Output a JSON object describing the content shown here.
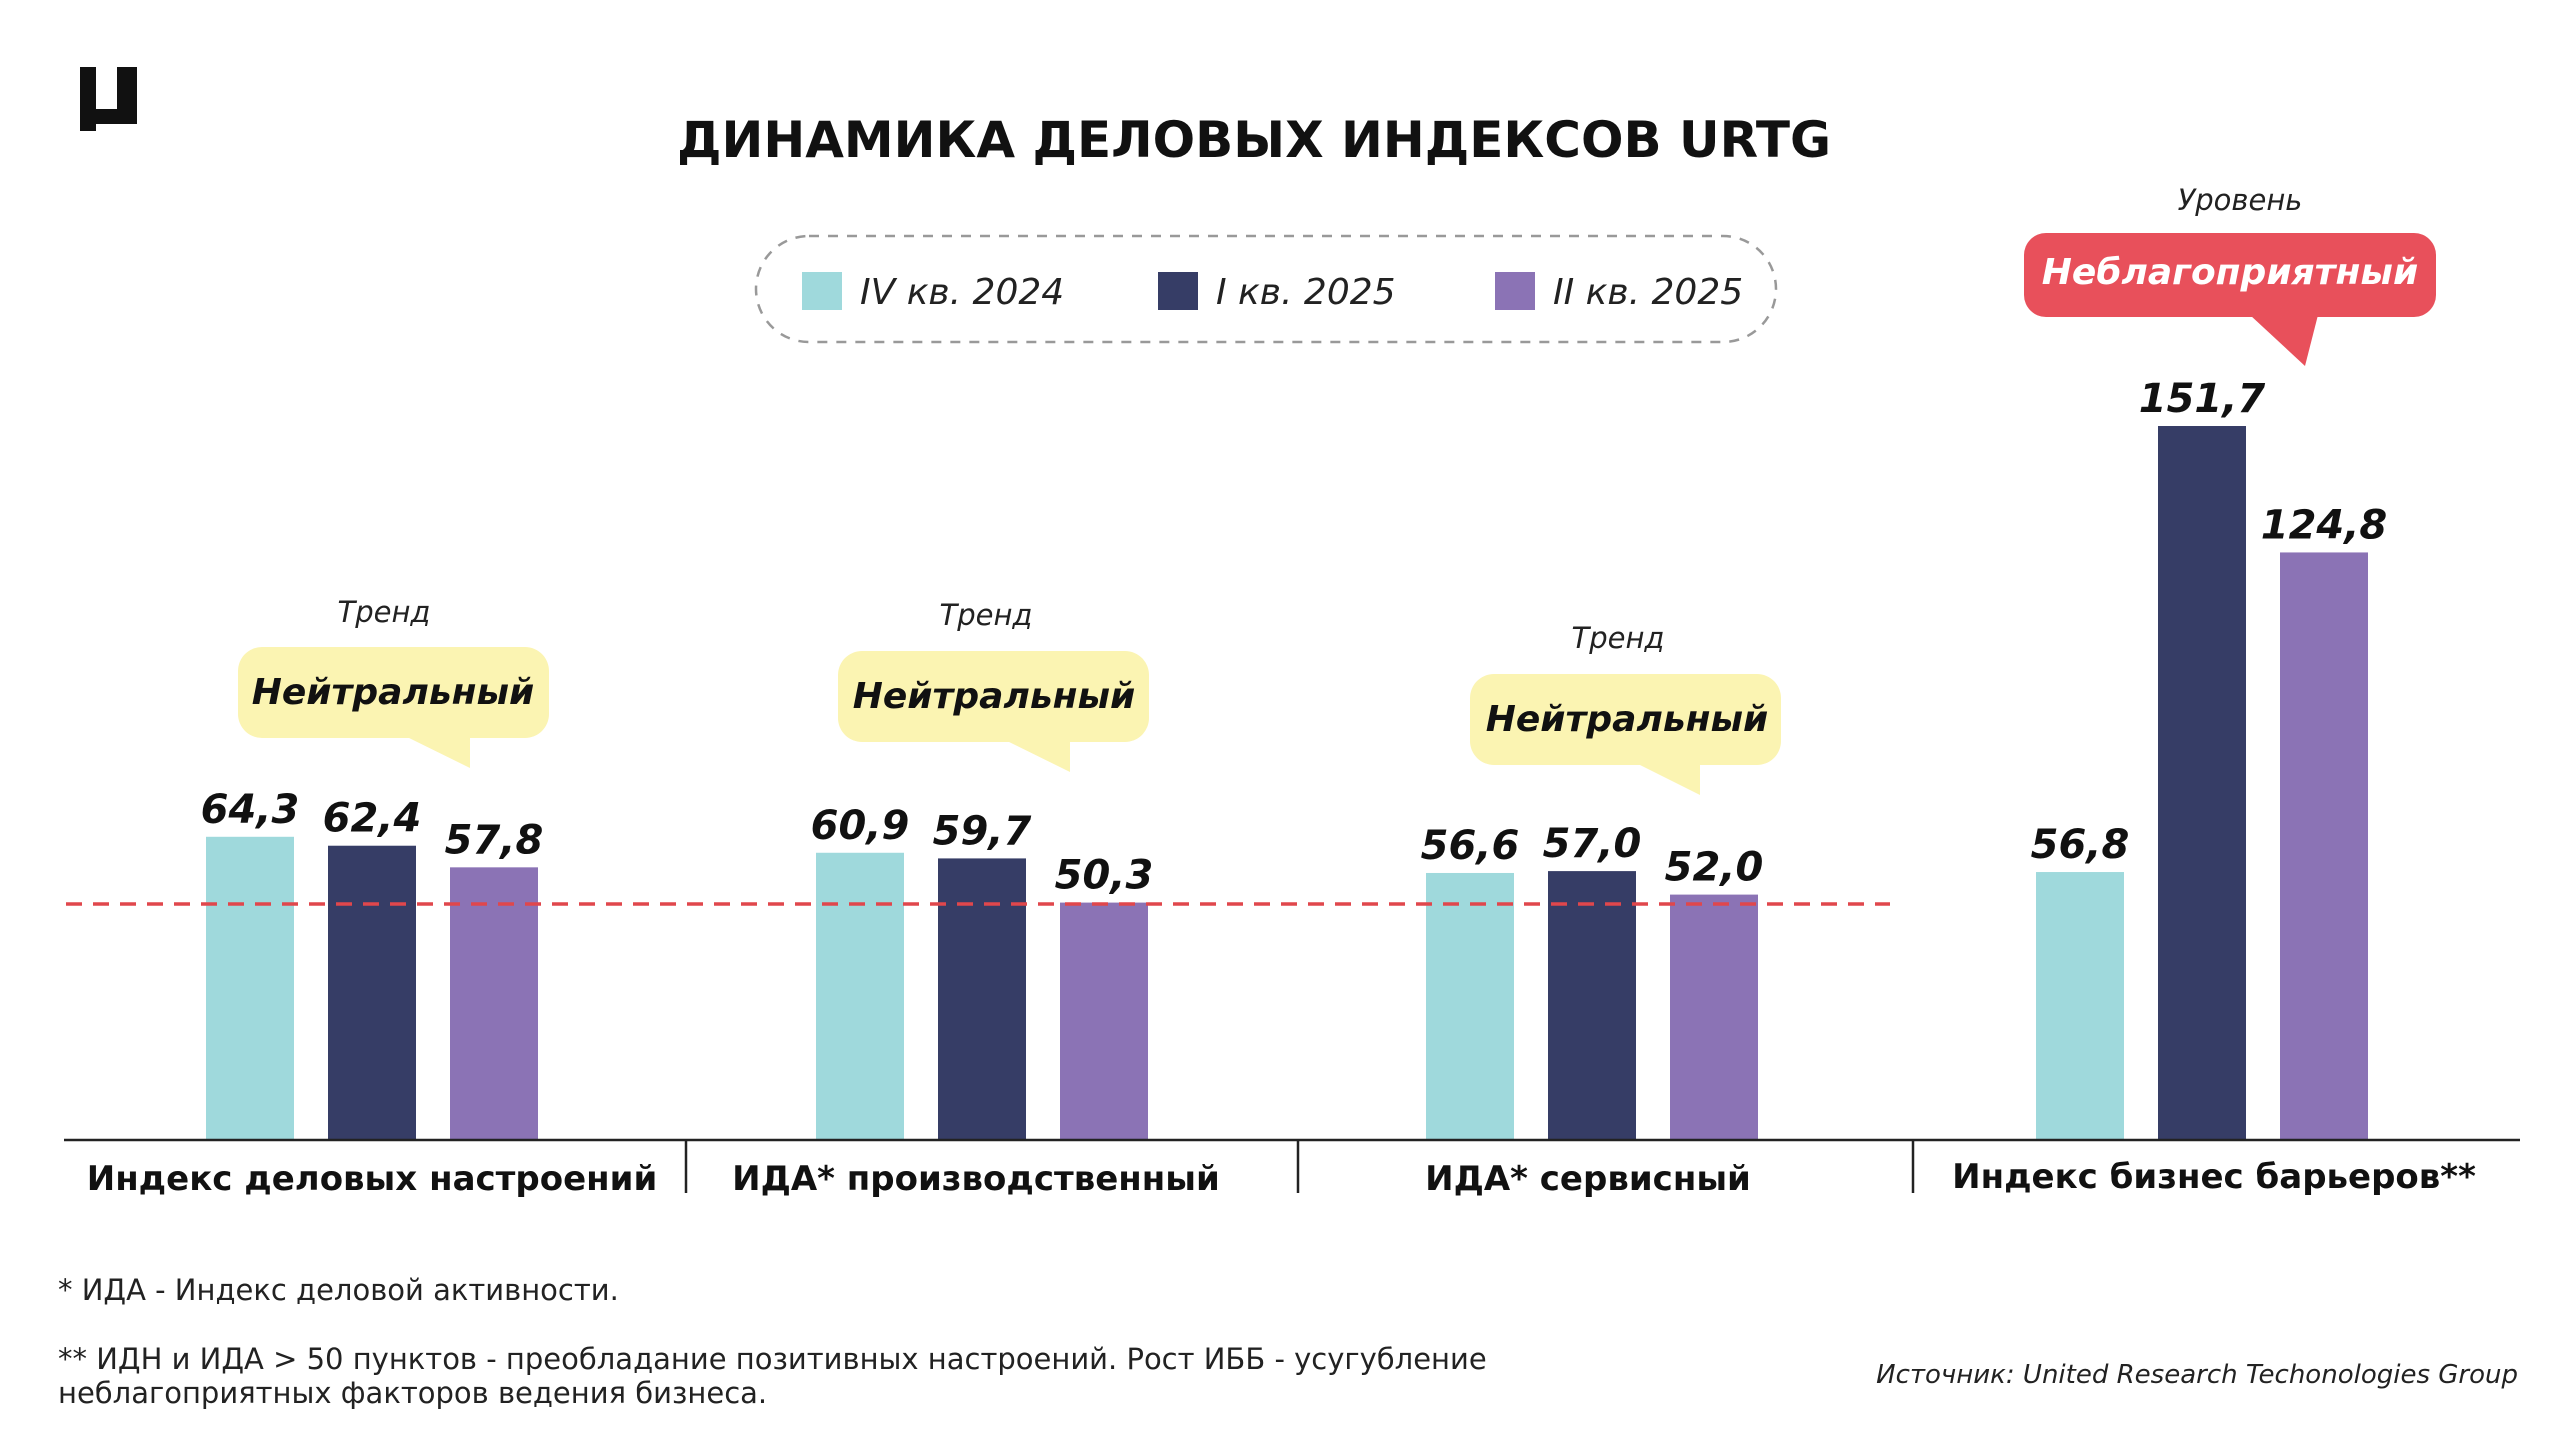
{
  "title": "ДИНАМИКА ДЕЛОВЫХ ИНДЕКСОВ URTG",
  "colors": {
    "q4_2024": "#9fd9dc",
    "q1_2025": "#363d66",
    "q2_2025": "#8b73b5",
    "threshold_line": "#e0474c",
    "trend_bubble": "#fbf4b2",
    "level_bubble": "#e8505b",
    "logo": "#111111"
  },
  "icons": {
    "logo": "urtg-logo-icon"
  },
  "bubbles": [
    {
      "caption": "Тренд",
      "label": "Нейтральный"
    },
    {
      "caption": "Тренд",
      "label": "Нейтральный"
    },
    {
      "caption": "Тренд",
      "label": "Нейтральный"
    },
    {
      "caption": "Уровень",
      "label": "Неблагоприятный"
    }
  ],
  "chart_data": {
    "type": "bar",
    "categories": [
      "Индекс деловых настроений",
      "ИДА* производственный",
      "ИДА* сервисный",
      "Индекс бизнес барьеров**"
    ],
    "series": [
      {
        "name": "IV кв. 2024",
        "values": [
          64.3,
          60.9,
          56.6,
          56.8
        ],
        "labels": [
          "64,3",
          "60,9",
          "56,6",
          "56,8"
        ]
      },
      {
        "name": "I кв. 2025",
        "values": [
          62.4,
          59.7,
          57.0,
          151.7
        ],
        "labels": [
          "62,4",
          "59,7",
          "57,0",
          "151,7"
        ]
      },
      {
        "name": "II кв. 2025",
        "values": [
          57.8,
          50.3,
          52.0,
          124.8
        ],
        "labels": [
          "57,8",
          "50,3",
          "52,0",
          "124,8"
        ]
      }
    ],
    "threshold": 50,
    "legend_position": "top-center",
    "grid": false
  },
  "footnotes": {
    "note1": "* ИДА - Индекс деловой активности.",
    "note2_line1": "** ИДН и ИДА > 50 пунктов - преобладание позитивных настроений. Рост ИББ - усугубление",
    "note2_line2": "неблагоприятных факторов ведения бизнеса.",
    "source": "Источник: United Research Techonologies Group"
  }
}
